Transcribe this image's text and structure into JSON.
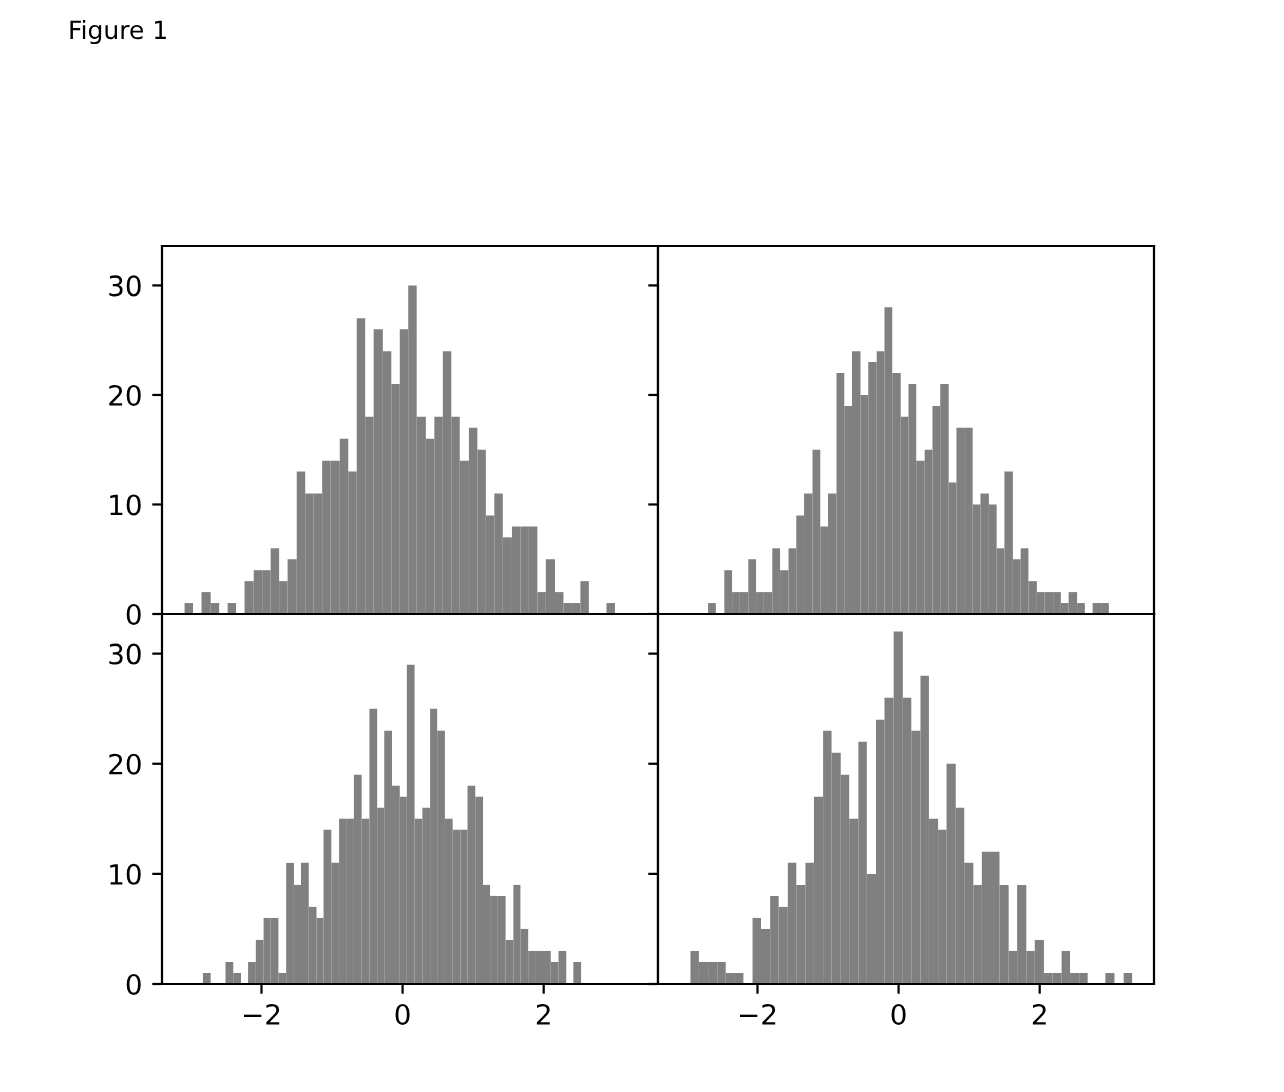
{
  "chart_data": [
    {
      "type": "histogram",
      "annotations": [
        "Figure 1"
      ],
      "color": "#808080",
      "xlim": [
        -3.41,
        3.62
      ],
      "ylim": [
        0,
        33.6
      ],
      "yticks": [
        0,
        10,
        20,
        30
      ],
      "tick_labels": "y",
      "bins": [
        -3.09,
        -2.97,
        -2.85,
        -2.72,
        -2.6,
        -2.48,
        -2.36,
        -2.24,
        -2.11,
        -1.99,
        -1.87,
        -1.75,
        -1.63,
        -1.5,
        -1.38,
        -1.26,
        -1.14,
        -1.02,
        -0.89,
        -0.77,
        -0.65,
        -0.53,
        -0.41,
        -0.28,
        -0.16,
        -0.04,
        0.08,
        0.2,
        0.33,
        0.45,
        0.57,
        0.69,
        0.81,
        0.94,
        1.06,
        1.18,
        1.3,
        1.42,
        1.55,
        1.67,
        1.79,
        1.91,
        2.03,
        2.16,
        2.28,
        2.4,
        2.52,
        2.64,
        2.89,
        3.01
      ],
      "values": [
        1,
        0,
        2,
        1,
        0,
        1,
        0,
        3,
        4,
        4,
        6,
        3,
        5,
        13,
        11,
        11,
        14,
        14,
        16,
        13,
        27,
        18,
        26,
        24,
        21,
        26,
        30,
        18,
        16,
        18,
        24,
        18,
        14,
        17,
        15,
        9,
        11,
        7,
        8,
        8,
        8,
        2,
        5,
        2,
        1,
        1,
        3,
        0,
        1
      ]
    },
    {
      "type": "histogram",
      "color": "#808080",
      "xlim": [
        -3.41,
        3.62
      ],
      "ylim": [
        0,
        33.6
      ],
      "yticks": [
        0,
        10,
        20,
        30
      ],
      "tick_labels": false,
      "bins": [
        -2.7,
        -2.59,
        -2.47,
        -2.36,
        -2.25,
        -2.13,
        -2.02,
        -1.91,
        -1.79,
        -1.68,
        -1.56,
        -1.45,
        -1.34,
        -1.22,
        -1.11,
        -1,
        -0.88,
        -0.77,
        -0.66,
        -0.54,
        -0.43,
        -0.31,
        -0.2,
        -0.09,
        0.03,
        0.14,
        0.25,
        0.37,
        0.48,
        0.59,
        0.71,
        0.82,
        0.94,
        1.05,
        1.16,
        1.28,
        1.39,
        1.5,
        1.62,
        1.73,
        1.84,
        1.96,
        2.07,
        2.19,
        2.3,
        2.41,
        2.53,
        2.64,
        2.75,
        2.87,
        2.98
      ],
      "values": [
        1,
        0,
        4,
        2,
        2,
        5,
        2,
        2,
        6,
        4,
        6,
        9,
        11,
        15,
        8,
        11,
        22,
        19,
        24,
        20,
        23,
        24,
        28,
        22,
        18,
        21,
        14,
        15,
        19,
        21,
        12,
        17,
        17,
        10,
        11,
        10,
        6,
        13,
        5,
        6,
        3,
        2,
        2,
        2,
        1,
        2,
        1,
        0,
        1,
        1
      ]
    },
    {
      "type": "histogram",
      "color": "#808080",
      "xlim": [
        -3.41,
        3.62
      ],
      "ylim": [
        0,
        33.6
      ],
      "xticks": [
        {
          "value": -2,
          "label": "−2"
        },
        0,
        2
      ],
      "yticks": [
        0,
        10,
        20,
        30
      ],
      "bins": [
        -2.83,
        -2.72,
        -2.51,
        -2.4,
        -2.29,
        -2.19,
        -2.08,
        -1.97,
        -1.87,
        -1.76,
        -1.65,
        -1.54,
        -1.44,
        -1.33,
        -1.22,
        -1.12,
        -1.01,
        -0.9,
        -0.79,
        -0.69,
        -0.58,
        -0.47,
        -0.36,
        -0.26,
        -0.15,
        -0.04,
        0.06,
        0.17,
        0.28,
        0.39,
        0.49,
        0.6,
        0.71,
        0.82,
        0.92,
        1.03,
        1.14,
        1.24,
        1.35,
        1.46,
        1.57,
        1.67,
        1.78,
        1.89,
        1.99,
        2.1,
        2.21,
        2.32,
        2.42,
        2.53
      ],
      "values": [
        1,
        0,
        2,
        1,
        0,
        2,
        4,
        6,
        6,
        1,
        11,
        9,
        11,
        7,
        6,
        14,
        11,
        15,
        15,
        19,
        15,
        25,
        16,
        23,
        18,
        17,
        29,
        15,
        16,
        25,
        23,
        15,
        14,
        14,
        18,
        17,
        9,
        8,
        8,
        4,
        9,
        5,
        3,
        3,
        3,
        2,
        3,
        0,
        2
      ]
    },
    {
      "type": "histogram",
      "color": "#808080",
      "xlim": [
        -3.41,
        3.62
      ],
      "ylim": [
        0,
        33.6
      ],
      "xticks": [
        {
          "value": -2,
          "label": "−2"
        },
        0,
        2
      ],
      "yticks": [
        0,
        10,
        20,
        30
      ],
      "tick_labels": "x",
      "bins": [
        -2.95,
        -2.83,
        -2.7,
        -2.57,
        -2.45,
        -2.32,
        -2.2,
        -2.07,
        -1.95,
        -1.82,
        -1.7,
        -1.57,
        -1.45,
        -1.32,
        -1.2,
        -1.07,
        -0.95,
        -0.82,
        -0.7,
        -0.57,
        -0.45,
        -0.32,
        -0.2,
        -0.07,
        0.06,
        0.18,
        0.31,
        0.43,
        0.56,
        0.68,
        0.81,
        0.93,
        1.06,
        1.18,
        1.31,
        1.43,
        1.56,
        1.68,
        1.81,
        1.93,
        2.06,
        2.18,
        2.31,
        2.43,
        2.56,
        2.68,
        2.93,
        3.06,
        3.19,
        3.31
      ],
      "values": [
        3,
        2,
        2,
        2,
        1,
        1,
        0,
        6,
        5,
        8,
        7,
        11,
        9,
        11,
        17,
        23,
        21,
        19,
        15,
        22,
        10,
        24,
        26,
        32,
        26,
        23,
        28,
        15,
        14,
        20,
        16,
        11,
        9,
        12,
        12,
        9,
        3,
        9,
        3,
        4,
        1,
        1,
        3,
        1,
        1,
        0,
        1,
        0,
        1
      ]
    }
  ]
}
